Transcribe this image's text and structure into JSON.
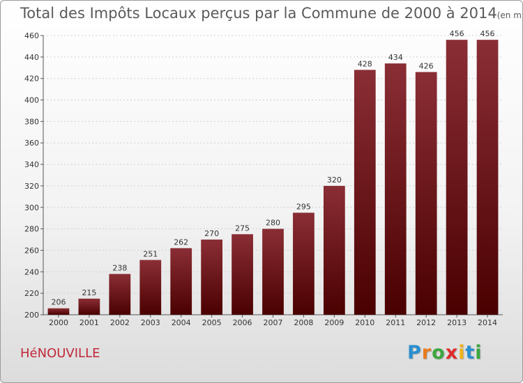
{
  "title": "Total des Impôts Locaux perçus par la Commune de 2000 à 2014",
  "title_unit": "(en milliers d'€)",
  "commune": "HéNOUVILLE",
  "logo": {
    "letters": [
      "P",
      "r",
      "o",
      "x",
      "i",
      "t",
      "i"
    ],
    "colors": [
      "#2a8fd0",
      "#e87b1c",
      "#3da63f",
      "#e02a2a",
      "#f0b21a",
      "#2a8fd0",
      "#3da63f"
    ]
  },
  "colors": {
    "bar_top": "#8a2e35",
    "bar_bottom": "#4a0000",
    "commune_text": "#c0283a"
  },
  "chart_data": {
    "type": "bar",
    "title": "Total des Impôts Locaux perçus par la Commune de 2000 à 2014",
    "categories": [
      "2000",
      "2001",
      "2002",
      "2003",
      "2004",
      "2005",
      "2006",
      "2007",
      "2008",
      "2009",
      "2010",
      "2011",
      "2012",
      "2013",
      "2014"
    ],
    "values": [
      206,
      215,
      238,
      251,
      262,
      270,
      275,
      280,
      295,
      320,
      428,
      434,
      426,
      456,
      456
    ],
    "ylim": [
      200,
      460
    ],
    "yticks": [
      200,
      220,
      240,
      260,
      280,
      300,
      320,
      340,
      360,
      380,
      400,
      420,
      440,
      460
    ],
    "grid": true,
    "xlabel": "",
    "ylabel": ""
  }
}
